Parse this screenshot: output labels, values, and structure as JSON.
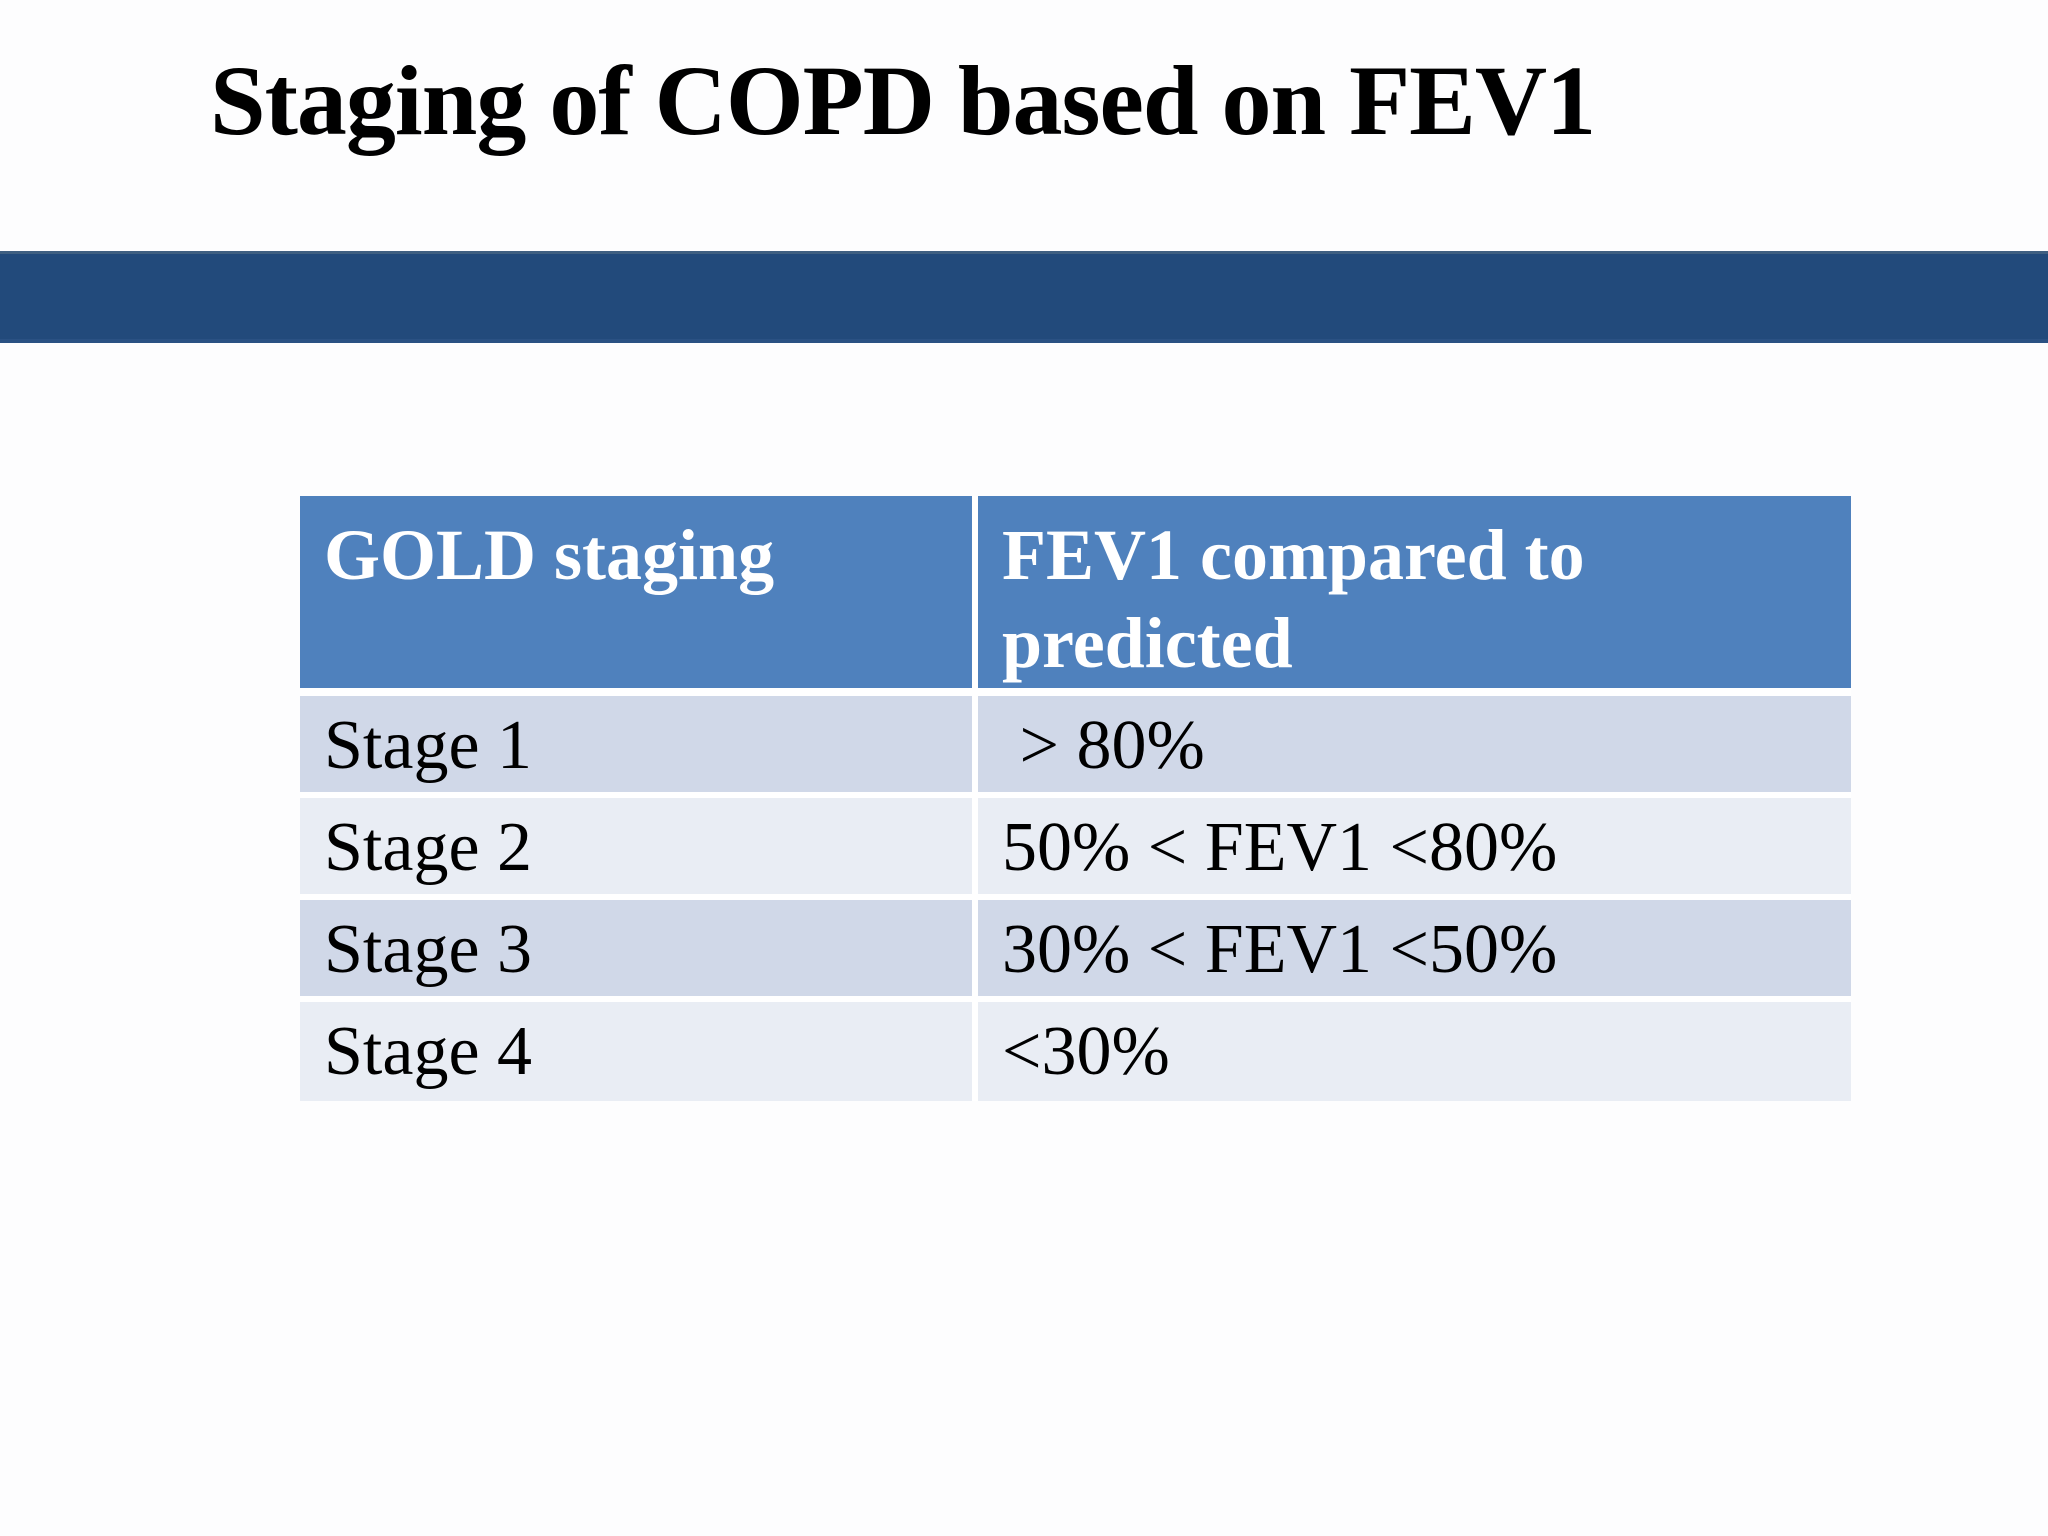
{
  "slide": {
    "title": "Staging of COPD based on FEV1"
  },
  "table": {
    "columns": [
      {
        "label": "GOLD staging"
      },
      {
        "label": "FEV1 compared to predicted"
      }
    ],
    "rows": [
      {
        "stage": "Stage 1",
        "fev1": " > 80%"
      },
      {
        "stage": "Stage 2",
        "fev1": "50% < FEV1 <80%"
      },
      {
        "stage": "Stage 3",
        "fev1": "30% < FEV1 <50%"
      },
      {
        "stage": "Stage 4",
        "fev1": "<30%"
      }
    ]
  },
  "colors": {
    "header_bg": "#4F81BD",
    "band_dark": "#D0D8E8",
    "band_light": "#E9EDF4",
    "bar_fill": "#224A7B",
    "bar_edge_top": "#3F5F81",
    "bar_edge_bottom": "#2A5183",
    "header_text": "#FFFFFF",
    "body_text": "#000000",
    "title_text": "#000000"
  }
}
